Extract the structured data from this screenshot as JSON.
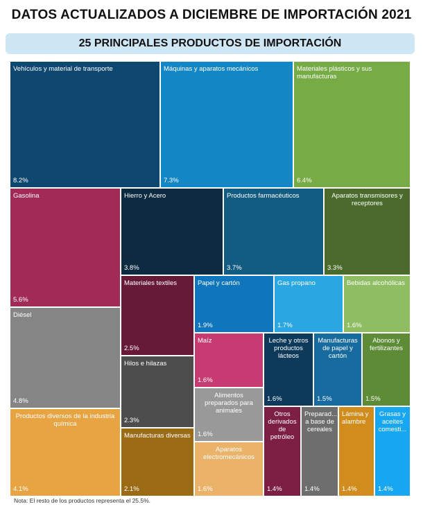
{
  "header": {
    "title": "DATOS ACTUALIZADOS A DICIEMBRE DE IMPORTACIÓN 2021",
    "subtitle": "25 PRINCIPALES PRODUCTOS DE IMPORTACIÓN"
  },
  "chart_data": {
    "type": "treemap",
    "title": "25 PRINCIPALES PRODUCTOS DE IMPORTACIÓN",
    "unit": "%",
    "items": [
      {
        "label": "Vehículos y material de transporte",
        "value": 8.2,
        "display": "8.2%",
        "color": "#0e4770"
      },
      {
        "label": "Máquinas y aparatos mecánicos",
        "value": 7.3,
        "display": "7.3%",
        "color": "#1387c6"
      },
      {
        "label": "Materiales plásticos y sus manufacturas",
        "value": 6.4,
        "display": "6.4%",
        "color": "#77ab45"
      },
      {
        "label": "Gasolina",
        "value": 5.6,
        "display": "5.6%",
        "color": "#a12a56"
      },
      {
        "label": "Hierro y Acero",
        "value": 3.8,
        "display": "3.8%",
        "color": "#0c2a40"
      },
      {
        "label": "Productos farmacéuticos",
        "value": 3.7,
        "display": "3.7%",
        "color": "#125c82"
      },
      {
        "label": "Aparatos transmisores y receptores",
        "value": 3.3,
        "display": "3.3%",
        "color": "#4a6b2c"
      },
      {
        "label": "Diésel",
        "value": 4.8,
        "display": "4.8%",
        "color": "#858585"
      },
      {
        "label": "Materiales textiles",
        "value": 2.5,
        "display": "2.5%",
        "color": "#671a38"
      },
      {
        "label": "Papel y cartón",
        "value": 1.9,
        "display": "1.9%",
        "color": "#0f75bc"
      },
      {
        "label": "Gas propano",
        "value": 1.7,
        "display": "1.7%",
        "color": "#2aa6e3"
      },
      {
        "label": "Bebidas alcohólicas",
        "value": 1.6,
        "display": "1.6%",
        "color": "#8fbd63"
      },
      {
        "label": "Hilos e hilazas",
        "value": 2.3,
        "display": "2.3%",
        "color": "#4d4d4d"
      },
      {
        "label": "Maíz",
        "value": 1.6,
        "display": "1.6%",
        "color": "#c83b72"
      },
      {
        "label": "Leche y otros productos lácteos",
        "value": 1.6,
        "display": "1.6%",
        "color": "#0d3a5a"
      },
      {
        "label": "Manufacturas de papel y cartón",
        "value": 1.5,
        "display": "1.5%",
        "color": "#176b9e"
      },
      {
        "label": "Abonos y fertilizantes",
        "value": 1.5,
        "display": "1.5%",
        "color": "#5d8b36"
      },
      {
        "label": "Alimentos preparados para animales",
        "value": 1.6,
        "display": "1.6%",
        "color": "#999999"
      },
      {
        "label": "Productos diversos de la industria química",
        "value": 4.1,
        "display": "4.1%",
        "color": "#e8a443"
      },
      {
        "label": "Manufacturas diversas",
        "value": 2.1,
        "display": "2.1%",
        "color": "#9a6a14"
      },
      {
        "label": "Aparatos electromecánicos",
        "value": 1.6,
        "display": "1.6%",
        "color": "#eab369"
      },
      {
        "label": "Otros derivados de petróleo",
        "value": 1.4,
        "display": "1.4%",
        "color": "#7d1e44"
      },
      {
        "label": "Preparad... a base de cereales",
        "value": 1.4,
        "display": "1.4%",
        "color": "#6e6e6e"
      },
      {
        "label": "Lámina y alambre",
        "value": 1.4,
        "display": "1.4%",
        "color": "#d08c1c"
      },
      {
        "label": "Grasas y aceites comesti...",
        "value": 1.4,
        "display": "1.4%",
        "color": "#17a7f0"
      }
    ]
  },
  "note": "Nota: El resto de los productos representa el 25.5%."
}
